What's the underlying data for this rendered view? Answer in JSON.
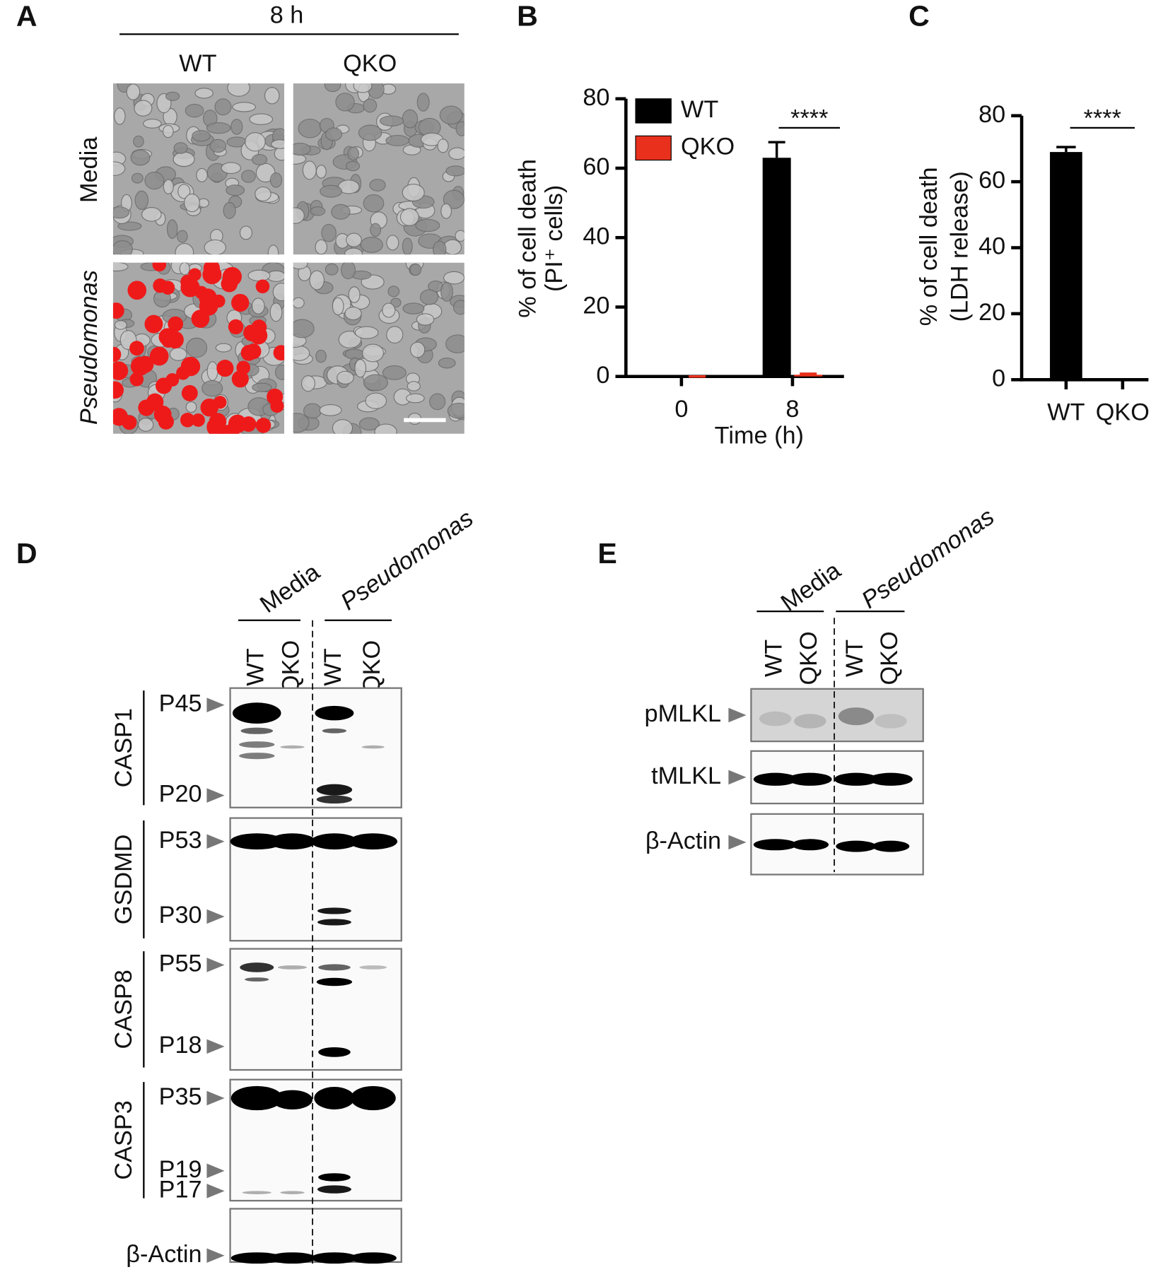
{
  "panel_labels": [
    "A",
    "B",
    "C",
    "D",
    "E"
  ],
  "panel_a": {
    "time": "8 h",
    "columns": [
      "WT",
      "QKO"
    ],
    "rows": [
      "Media",
      "Pseudomonas"
    ]
  },
  "chart_data": [
    {
      "type": "bar",
      "x_label": "Time (h)",
      "y_label": [
        "% of cell death",
        "(PI⁺ cells)"
      ],
      "categories": [
        "0",
        "8"
      ],
      "series": [
        {
          "name": "WT",
          "color": "#000000",
          "values": [
            0,
            63
          ],
          "errors": [
            0,
            4.5
          ]
        },
        {
          "name": "QKO",
          "color": "#e8301c",
          "values": [
            0,
            0.5
          ],
          "errors": [
            0,
            0.3
          ]
        }
      ],
      "ylim": [
        0,
        80
      ],
      "yticks": [
        0,
        20,
        40,
        60,
        80
      ],
      "legend": "upper left",
      "significance": "****"
    },
    {
      "type": "bar",
      "y_label": [
        "% of cell death",
        "(LDH release)"
      ],
      "categories": [
        "WT",
        "QKO"
      ],
      "values": [
        69,
        0
      ],
      "errors": [
        1.5,
        0
      ],
      "color": "#000000",
      "ylim": [
        0,
        80
      ],
      "yticks": [
        0,
        20,
        40,
        60,
        80
      ],
      "significance": "****"
    }
  ],
  "panel_d": {
    "conditions": [
      "Media",
      "Pseudomonas"
    ],
    "lanes": [
      "WT",
      "QKO",
      "WT",
      "QKO"
    ],
    "blots": [
      {
        "protein": "CASP1",
        "bands": [
          "P45",
          "P20"
        ]
      },
      {
        "protein": "GSDMD",
        "bands": [
          "P53",
          "P30"
        ]
      },
      {
        "protein": "CASP8",
        "bands": [
          "P55",
          "P18"
        ]
      },
      {
        "protein": "CASP3",
        "bands": [
          "P35",
          "P19",
          "P17"
        ]
      }
    ],
    "loading_control": "β-Actin"
  },
  "panel_e": {
    "conditions": [
      "Media",
      "Pseudomonas"
    ],
    "lanes": [
      "WT",
      "QKO",
      "WT",
      "QKO"
    ],
    "blots": [
      "pMLKL",
      "tMLKL",
      "β-Actin"
    ]
  }
}
